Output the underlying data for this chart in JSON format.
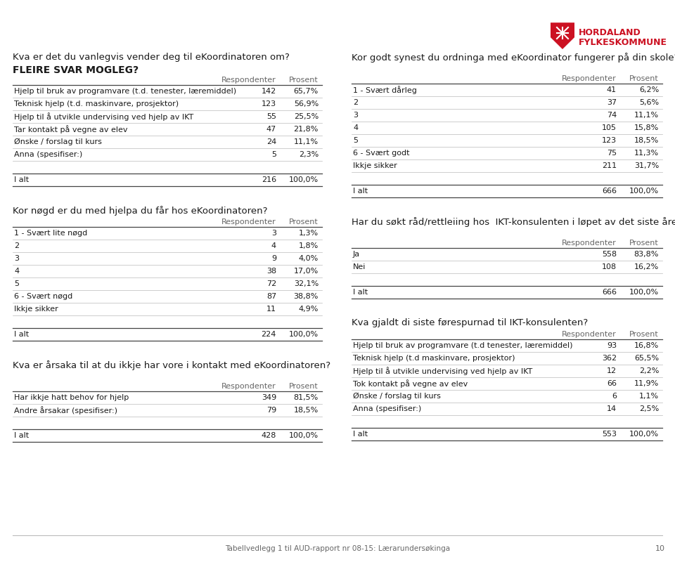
{
  "background_color": "#ffffff",
  "text_color": "#1a1a1a",
  "header_color": "#666666",
  "line_dark": "#444444",
  "line_light": "#bbbbbb",
  "logo_color": "#cc1122",
  "logo_text1": "HORDALAND",
  "logo_text2": "FYLKESKOMMUNE",
  "page_number": "10",
  "footer_text": "Tabellvedlegg 1 til AUD-rapport nr 08-15: Lærarundersøkinga",
  "col_header": [
    "Respondenter",
    "Prosent"
  ],
  "section1_title": "Kva er det du vanlegvis vender deg til eKoordinatoren om?",
  "section1_subtitle": "FLEIRE SVAR MOGLEG?",
  "section1_rows": [
    [
      "Hjelp til bruk av programvare (t.d. tenester, læremiddel)",
      "142",
      "65,7%"
    ],
    [
      "Teknisk hjelp (t.d. maskinvare, prosjektor)",
      "123",
      "56,9%"
    ],
    [
      "Hjelp til å utvikle undervising ved hjelp av IKT",
      "55",
      "25,5%"
    ],
    [
      "Tar kontakt på vegne av elev",
      "47",
      "21,8%"
    ],
    [
      "Ønske / forslag til kurs",
      "24",
      "11,1%"
    ],
    [
      "Anna (spesifiser:)",
      "5",
      "2,3%"
    ]
  ],
  "section1_total": [
    "I alt",
    "216",
    "100,0%"
  ],
  "section2_title": "Kor nøgd er du med hjelpa du får hos eKoordinatoren?",
  "section2_rows": [
    [
      "1 - Svært lite nøgd",
      "3",
      "1,3%"
    ],
    [
      "2",
      "4",
      "1,8%"
    ],
    [
      "3",
      "9",
      "4,0%"
    ],
    [
      "4",
      "38",
      "17,0%"
    ],
    [
      "5",
      "72",
      "32,1%"
    ],
    [
      "6 - Svært nøgd",
      "87",
      "38,8%"
    ],
    [
      "Ikkje sikker",
      "11",
      "4,9%"
    ]
  ],
  "section2_total": [
    "I alt",
    "224",
    "100,0%"
  ],
  "section3_title": "Kva er årsaka til at du ikkje har vore i kontakt med eKoordinatoren?",
  "section3_rows": [
    [
      "Har ikkje hatt behov for hjelp",
      "349",
      "81,5%"
    ],
    [
      "Andre årsakar (spesifiser:)",
      "79",
      "18,5%"
    ]
  ],
  "section3_total": [
    "I alt",
    "428",
    "100,0%"
  ],
  "section4_title": "Kor godt synest du ordninga med eKoordinator fungerer på din skole?",
  "section4_rows": [
    [
      "1 - Svært dårleg",
      "41",
      "6,2%"
    ],
    [
      "2",
      "37",
      "5,6%"
    ],
    [
      "3",
      "74",
      "11,1%"
    ],
    [
      "4",
      "105",
      "15,8%"
    ],
    [
      "5",
      "123",
      "18,5%"
    ],
    [
      "6 - Svært godt",
      "75",
      "11,3%"
    ],
    [
      "Ikkje sikker",
      "211",
      "31,7%"
    ]
  ],
  "section4_total": [
    "I alt",
    "666",
    "100,0%"
  ],
  "section5_title": "Har du søkt råd/rettleiing hos  IKT-konsulenten i løpet av det siste året?",
  "section5_rows": [
    [
      "Ja",
      "558",
      "83,8%"
    ],
    [
      "Nei",
      "108",
      "16,2%"
    ]
  ],
  "section5_total": [
    "I alt",
    "666",
    "100,0%"
  ],
  "section6_title": "Kva gjaldt di siste førespurnad til IKT-konsulenten?",
  "section6_rows": [
    [
      "Hjelp til bruk av programvare (t.d tenester, læremiddel)",
      "93",
      "16,8%"
    ],
    [
      "Teknisk hjelp (t.d maskinvare, prosjektor)",
      "362",
      "65,5%"
    ],
    [
      "Hjelp til å utvikle undervising ved hjelp av IKT",
      "12",
      "2,2%"
    ],
    [
      "Tok kontakt på vegne av elev",
      "66",
      "11,9%"
    ],
    [
      "Ønske / forslag til kurs",
      "6",
      "1,1%"
    ],
    [
      "Anna (spesifiser:)",
      "14",
      "2,5%"
    ]
  ],
  "section6_total": [
    "I alt",
    "553",
    "100,0%"
  ]
}
